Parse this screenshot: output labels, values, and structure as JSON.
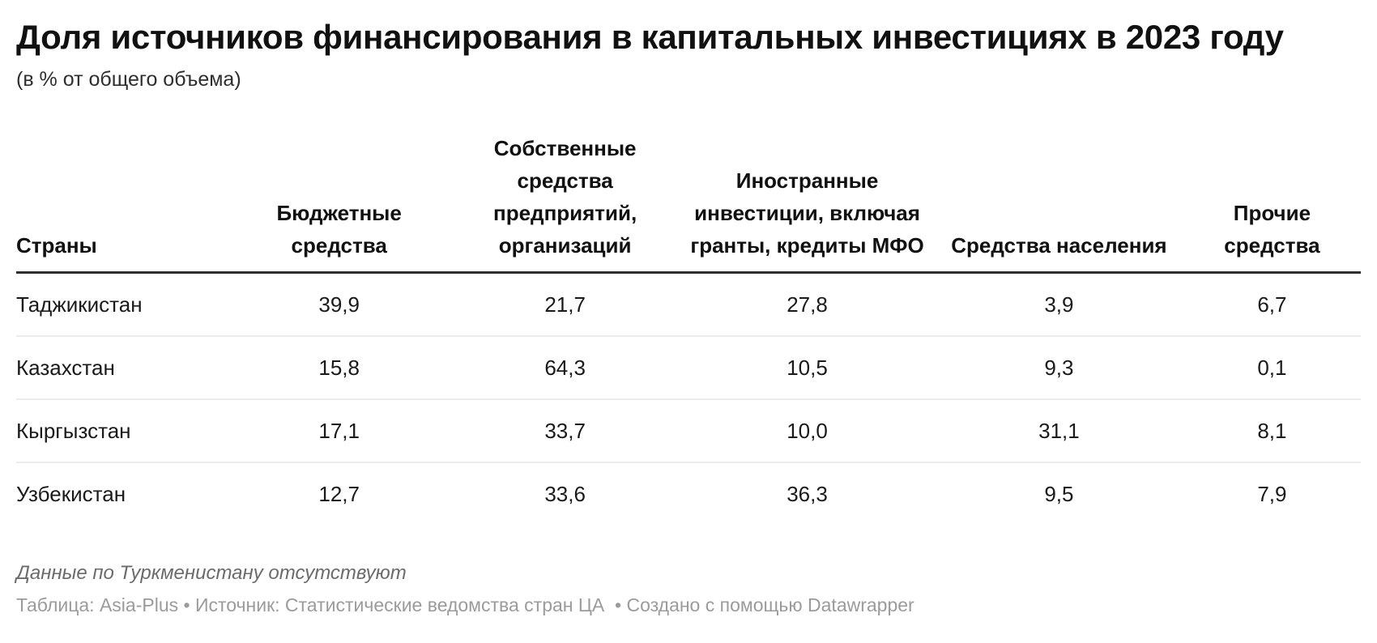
{
  "chart_data": {
    "type": "table",
    "title": "Доля источников финансирования в капитальных инвестициях в 2023 году",
    "subtitle": "(в % от общего объема)",
    "columns": [
      "Страны",
      "Бюджетные средства",
      "Собственные средства предприятий, организаций",
      "Иностранные инвестиции, включая гранты, кредиты МФО",
      "Средства населения",
      "Прочие средства"
    ],
    "rows": [
      [
        "Таджикистан",
        "39,9",
        "21,7",
        "27,8",
        "3,9",
        "6,7"
      ],
      [
        "Казахстан",
        "15,8",
        "64,3",
        "10,5",
        "9,3",
        "0,1"
      ],
      [
        "Кыргызстан",
        "17,1",
        "33,7",
        "10,0",
        "31,1",
        "8,1"
      ],
      [
        "Узбекистан",
        "12,7",
        "33,6",
        "36,3",
        "9,5",
        "7,9"
      ]
    ],
    "note": "Данные по Туркменистану отсутствуют",
    "credits": {
      "prefix": "Таблица: ",
      "source_name": "Asia-Plus",
      "middle": " • Источник: Статистические ведомства стран ЦА  • Создано с помощью ",
      "tool": "Datawrapper"
    },
    "colors": {
      "text": "#111111",
      "header_rule": "#2e2e2e",
      "row_rule": "#ebebeb",
      "note_text": "#6b6b6b",
      "credits_text": "#9b9b9b",
      "background": "#ffffff"
    },
    "layout_hints": {
      "first_column_align": "left",
      "value_columns_align": "center",
      "header_align": "bottom"
    }
  }
}
